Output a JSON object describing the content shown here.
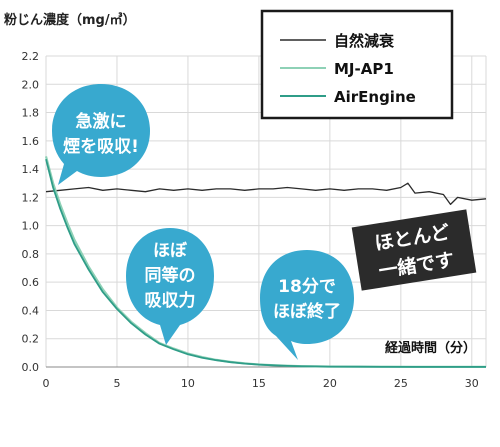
{
  "chart_data": {
    "type": "line",
    "ylabel": "粉じん濃度（mg/㎥）",
    "xlabel": "経過時間（分）",
    "xlim": [
      0,
      31
    ],
    "ylim": [
      0,
      2.2
    ],
    "x_ticks": [
      "0",
      "5",
      "10",
      "15",
      "20",
      "25",
      "30"
    ],
    "y_ticks": [
      "0.0",
      "0.2",
      "0.4",
      "0.6",
      "0.8",
      "1.0",
      "1.2",
      "1.4",
      "1.6",
      "1.8",
      "2.0",
      "2.2"
    ],
    "grid": true,
    "legend_position": "top-right",
    "series": [
      {
        "name": "自然減衰",
        "color": "#2b2b2b",
        "x": [
          0,
          1,
          2,
          3,
          4,
          5,
          6,
          7,
          8,
          9,
          10,
          11,
          12,
          13,
          14,
          15,
          16,
          17,
          18,
          19,
          20,
          21,
          22,
          23,
          24,
          25,
          25.5,
          26,
          27,
          28,
          28.5,
          29,
          30,
          31
        ],
        "y": [
          1.24,
          1.25,
          1.26,
          1.27,
          1.25,
          1.26,
          1.25,
          1.24,
          1.26,
          1.25,
          1.26,
          1.25,
          1.26,
          1.26,
          1.25,
          1.26,
          1.26,
          1.27,
          1.26,
          1.25,
          1.26,
          1.25,
          1.26,
          1.26,
          1.25,
          1.27,
          1.3,
          1.23,
          1.24,
          1.22,
          1.15,
          1.2,
          1.18,
          1.19
        ]
      },
      {
        "name": "MJ-AP1",
        "color": "#8ed1b6",
        "x": [
          0,
          0.5,
          1,
          1.5,
          2,
          3,
          4,
          5,
          6,
          7,
          8,
          9,
          10,
          11,
          12,
          13,
          14,
          15,
          16,
          17,
          18,
          19,
          20,
          22,
          24,
          26,
          28,
          30,
          31
        ],
        "y": [
          1.49,
          1.3,
          1.15,
          1.02,
          0.9,
          0.71,
          0.55,
          0.42,
          0.32,
          0.24,
          0.17,
          0.13,
          0.095,
          0.07,
          0.05,
          0.036,
          0.026,
          0.018,
          0.013,
          0.009,
          0.006,
          0.004,
          0.003,
          0.002,
          0.002,
          0.001,
          0.001,
          0.001,
          0.001
        ]
      },
      {
        "name": "AirEngine",
        "color": "#2f9d88",
        "x": [
          0,
          0.5,
          1,
          1.5,
          2,
          3,
          4,
          5,
          6,
          7,
          8,
          9,
          10,
          11,
          12,
          13,
          14,
          15,
          16,
          17,
          18,
          19,
          20,
          22,
          24,
          26,
          28,
          30,
          31
        ],
        "y": [
          1.47,
          1.27,
          1.12,
          0.99,
          0.87,
          0.69,
          0.53,
          0.41,
          0.31,
          0.23,
          0.165,
          0.125,
          0.09,
          0.066,
          0.048,
          0.034,
          0.024,
          0.017,
          0.012,
          0.008,
          0.005,
          0.004,
          0.003,
          0.002,
          0.001,
          0.001,
          0.001,
          0.001,
          0.001
        ]
      }
    ]
  },
  "annotations": {
    "bubble1": [
      "急激に",
      "煙を吸収!"
    ],
    "bubble2": [
      "ほぼ",
      "同等の",
      "吸収力"
    ],
    "bubble3": [
      "18分で",
      "ほぼ終了"
    ],
    "badge": [
      "ほとんど",
      "一緒です"
    ]
  },
  "colors": {
    "bubble": "#38a9cf",
    "badge": "#2b2b2b",
    "grid": "#d9d9d9"
  }
}
